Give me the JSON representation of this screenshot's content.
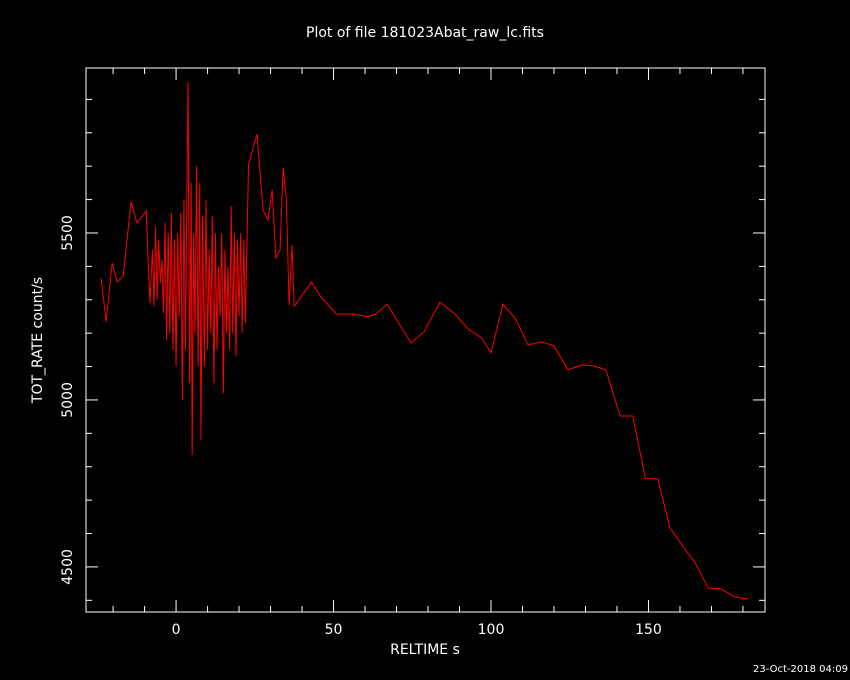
{
  "chart_data": {
    "type": "line",
    "title": "Plot of file 181023Abat_raw_lc.fits",
    "xlabel": "RELTIME  s",
    "ylabel": "TOT_RATE  count/s",
    "timestamp": "23-Oct-2018 04:09",
    "xlim": [
      -28.6,
      187
    ],
    "ylim": [
      4365,
      5994
    ],
    "xticks": [
      0,
      50,
      100,
      150
    ],
    "yticks": [
      4500,
      5000,
      5500
    ],
    "xminorticks": [
      -20,
      -10,
      10,
      20,
      30,
      40,
      60,
      70,
      80,
      90,
      110,
      120,
      130,
      140,
      160,
      170,
      180
    ],
    "yminorticks": [
      4400,
      4600,
      4700,
      4800,
      4900,
      5100,
      5200,
      5300,
      5400,
      5600,
      5700,
      5800,
      5900
    ],
    "series": [
      {
        "color": "#ff0000",
        "x": [
          -23.8,
          -22.2,
          -20.3,
          -18.7,
          -16.8,
          -14.3,
          -12.4,
          -9.5,
          -8.3,
          -7.5,
          -7,
          -6.5,
          -6,
          -5.5,
          -5,
          -4.5,
          -4,
          -3.5,
          -3,
          -2.5,
          -2,
          -1.5,
          -1,
          -0.5,
          0,
          0.5,
          1,
          1.5,
          2,
          2.5,
          3,
          3.5,
          3.8,
          4.3,
          4.8,
          5.1,
          5.6,
          6,
          6.5,
          7,
          7.5,
          7.9,
          8.4,
          9,
          9.5,
          10,
          10.5,
          11,
          11.5,
          12,
          12.5,
          13,
          13.5,
          14,
          14.5,
          15,
          15.5,
          16,
          16.5,
          17,
          17.5,
          18,
          18.5,
          19,
          19.5,
          20,
          20.5,
          21,
          21.5,
          22,
          23,
          25.7,
          27.6,
          29.2,
          30.5,
          31.7,
          33,
          34,
          35,
          35.9,
          36.8,
          37.5,
          43,
          46,
          51,
          56,
          61,
          63.5,
          67,
          74.6,
          78.7,
          83.8,
          88.6,
          92.7,
          97,
          100,
          103.8,
          108,
          111.7,
          116,
          120,
          124.4,
          128.9,
          132.7,
          136.5,
          141,
          145,
          149,
          153,
          156.8,
          160.6,
          164.8,
          169,
          173,
          177.5,
          181.6
        ],
        "values": [
          5365,
          5234,
          5410,
          5353,
          5371,
          5593,
          5530,
          5566,
          5290,
          5450,
          5280,
          5520,
          5300,
          5480,
          5350,
          5420,
          5260,
          5530,
          5180,
          5500,
          5200,
          5560,
          5150,
          5480,
          5100,
          5500,
          5250,
          5560,
          5000,
          5600,
          5150,
          5700,
          5952,
          5050,
          5650,
          4835,
          5500,
          5200,
          5700,
          5100,
          5650,
          4880,
          5550,
          5100,
          5600,
          5150,
          5450,
          5200,
          5550,
          5050,
          5500,
          5150,
          5400,
          5250,
          5500,
          5020,
          5450,
          5200,
          5400,
          5150,
          5580,
          5200,
          5500,
          5130,
          5480,
          5250,
          5500,
          5200,
          5480,
          5230,
          5704,
          5796,
          5569,
          5539,
          5629,
          5425,
          5449,
          5695,
          5605,
          5284,
          5464,
          5280,
          5353,
          5308,
          5257,
          5257,
          5250,
          5257,
          5287,
          5171,
          5204,
          5293,
          5257,
          5213,
          5186,
          5141,
          5287,
          5240,
          5165,
          5174,
          5162,
          5090,
          5105,
          5102,
          5090,
          4952,
          4952,
          4766,
          4763,
          4617,
          4566,
          4512,
          4437,
          4434,
          4410,
          4404
        ]
      }
    ]
  }
}
